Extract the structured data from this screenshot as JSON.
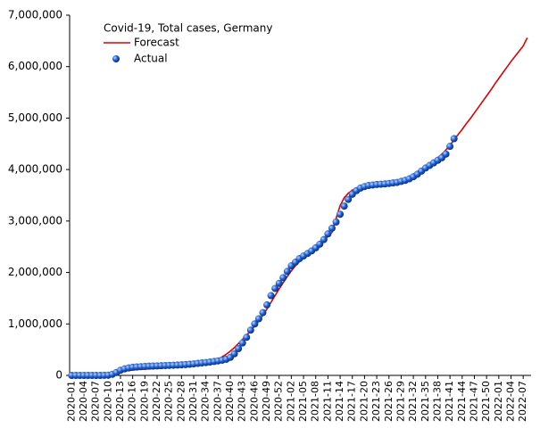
{
  "chart_data": {
    "type": "line",
    "title": "Covid-19, Total cases, Germany",
    "categories": [
      "2020-01",
      null,
      null,
      "2020-04",
      null,
      null,
      "2020-07",
      null,
      null,
      "2020-10",
      null,
      null,
      "2020-13",
      null,
      null,
      "2020-16",
      null,
      null,
      "2020-19",
      null,
      null,
      "2020-22",
      null,
      null,
      "2020-25",
      null,
      null,
      "2020-28",
      null,
      null,
      "2020-31",
      null,
      null,
      "2020-34",
      null,
      null,
      "2020-37",
      null,
      null,
      "2020-40",
      null,
      null,
      "2020-43",
      null,
      null,
      "2020-46",
      null,
      null,
      "2020-49",
      null,
      null,
      "2020-52",
      null,
      null,
      "2021-02",
      null,
      null,
      "2021-05",
      null,
      null,
      "2021-08",
      null,
      null,
      "2021-11",
      null,
      null,
      "2021-14",
      null,
      null,
      "2021-17",
      null,
      null,
      "2021-20",
      null,
      null,
      "2021-23",
      null,
      null,
      "2021-26",
      null,
      null,
      "2021-29",
      null,
      null,
      "2021-32",
      null,
      null,
      "2021-35",
      null,
      null,
      "2021-38",
      null,
      null,
      "2021-41",
      null,
      null,
      "2021-44",
      null,
      null,
      "2021-47",
      null,
      null,
      "2021-50",
      null,
      null,
      "2022-01",
      null,
      null,
      "2022-04",
      null,
      null,
      "2022-07",
      null
    ],
    "series": [
      {
        "name": "Forecast",
        "color": "#e00000",
        "style": "line",
        "values": [
          0,
          0,
          0,
          0,
          0,
          0,
          0,
          0,
          0,
          0,
          15000,
          40000,
          60000,
          80000,
          95000,
          105000,
          112000,
          118000,
          122000,
          126000,
          130000,
          135000,
          140000,
          145000,
          150000,
          155000,
          160000,
          165000,
          172000,
          180000,
          190000,
          205000,
          222000,
          240000,
          262000,
          288000,
          320000,
          360000,
          410000,
          470000,
          540000,
          620000,
          700000,
          780000,
          870000,
          960000,
          1060000,
          1170000,
          1290000,
          1420000,
          1550000,
          1680000,
          1800000,
          1920000,
          2030000,
          2130000,
          2210000,
          2280000,
          2340000,
          2400000,
          2460000,
          2530000,
          2610000,
          2700000,
          2780000,
          3050000,
          3300000,
          3450000,
          3540000,
          3600000,
          3640000,
          3660000,
          3670000,
          3680000,
          3690000,
          3700000,
          3710000,
          3720000,
          3730000,
          3745000,
          3765000,
          3790000,
          3820000,
          3860000,
          3910000,
          3960000,
          4010000,
          4060000,
          4110000,
          4170000,
          4230000,
          4300000,
          4380000,
          4470000,
          4580000,
          4680000,
          4780000,
          4890000,
          4990000,
          5100000,
          5210000,
          5320000,
          5430000,
          5540000,
          5660000,
          5770000,
          5880000,
          5990000,
          6100000,
          6200000,
          6300000,
          6400000,
          6560000
        ]
      },
      {
        "name": "Actual",
        "color": "#1f5fd0",
        "style": "dots",
        "values": [
          0,
          0,
          0,
          0,
          0,
          16,
          16,
          60,
          1100,
          4800,
          22000,
          57000,
          100000,
          127000,
          145000,
          158000,
          164000,
          170000,
          175000,
          179000,
          182000,
          185000,
          188000,
          191000,
          195000,
          198000,
          201000,
          205000,
          210000,
          216000,
          224000,
          233000,
          242000,
          250000,
          259000,
          270000,
          282000,
          295000,
          314000,
          350000,
          420000,
          520000,
          630000,
          740000,
          880000,
          1000000,
          1100000,
          1220000,
          1370000,
          1550000,
          1690000,
          1790000,
          1900000,
          2020000,
          2130000,
          2200000,
          2270000,
          2320000,
          2370000,
          2420000,
          2480000,
          2550000,
          2640000,
          2750000,
          2860000,
          2980000,
          3130000,
          3290000,
          3420000,
          3520000,
          3590000,
          3640000,
          3670000,
          3690000,
          3700000,
          3710000,
          3715000,
          3720000,
          3730000,
          3740000,
          3750000,
          3770000,
          3790000,
          3820000,
          3860000,
          3910000,
          3970000,
          4030000,
          4080000,
          4130000,
          4180000,
          4230000,
          4300000,
          4450000,
          4600000,
          null,
          null,
          null,
          null,
          null,
          null,
          null,
          null,
          null,
          null,
          null,
          null,
          null,
          null,
          null,
          null,
          null,
          null
        ]
      }
    ],
    "ylim": [
      0,
      7000000
    ],
    "yticks": [
      0,
      {
        "value": 1000000,
        "label": "1,000,000"
      },
      {
        "value": 2000000,
        "label": "2,000,000"
      },
      {
        "value": 3000000,
        "label": "3,000,000"
      },
      {
        "value": 4000000,
        "label": "4,000,000"
      },
      {
        "value": 5000000,
        "label": "5,000,000"
      },
      {
        "value": 6000000,
        "label": "6,000,000"
      },
      {
        "value": 7000000,
        "label": "7,000,000"
      }
    ],
    "grid": false
  }
}
